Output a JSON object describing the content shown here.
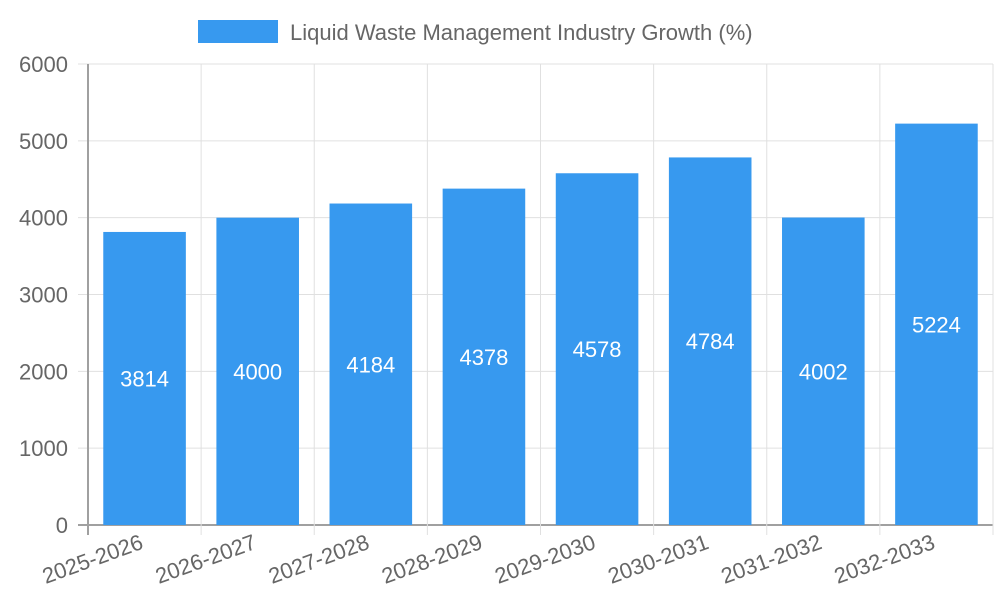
{
  "chart_data": {
    "type": "bar",
    "title": "",
    "legend": {
      "label": "Liquid Waste Management Industry Growth (%)",
      "placement": "top-center"
    },
    "categories": [
      "2025-2026",
      "2026-2027",
      "2027-2028",
      "2028-2029",
      "2029-2030",
      "2030-2031",
      "2031-2032",
      "2032-2033"
    ],
    "series": [
      {
        "name": "Liquid Waste Management Industry Growth (%)",
        "values": [
          3814,
          4000,
          4184,
          4378,
          4578,
          4784,
          4002,
          5224
        ]
      }
    ],
    "xlabel": "",
    "ylabel": "",
    "ylim": [
      0,
      6000
    ],
    "yticks": [
      0,
      1000,
      2000,
      3000,
      4000,
      5000,
      6000
    ],
    "grid": true,
    "colors": {
      "bar": "#3799ef",
      "grid": "#e0e0e0",
      "axis": "#a0a0a0",
      "tick_text": "#666666",
      "value_label": "#ffffff"
    }
  }
}
